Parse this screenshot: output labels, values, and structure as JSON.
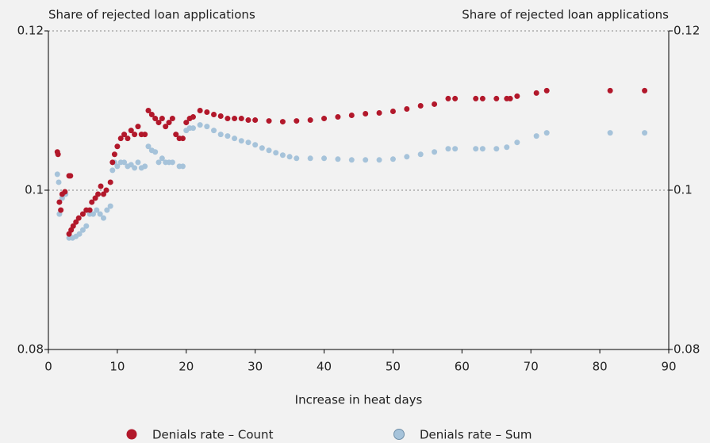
{
  "chart_data": {
    "type": "scatter",
    "y_label": "Share of rejected loan applications",
    "y2_label": "Share of rejected loan applications",
    "x_label": "Increase in heat days",
    "xlim": [
      0,
      90
    ],
    "xticks": [
      0,
      10,
      20,
      30,
      40,
      50,
      60,
      70,
      80,
      90
    ],
    "ylim": [
      0.08,
      0.12
    ],
    "yticks": [
      0.08,
      0.1,
      0.12
    ],
    "y2lim": [
      0.08,
      0.12
    ],
    "y2ticks": [
      0.08,
      0.1,
      0.12
    ],
    "grid": true,
    "series": [
      {
        "name": "Denials rate – Count",
        "color": "#b2182b",
        "x": [
          1.3,
          1.4,
          1.6,
          1.8,
          2.0,
          2.4,
          3.0,
          3.2,
          3.0,
          3.3,
          3.6,
          4.0,
          4.4,
          5.0,
          5.5,
          6.0,
          6.3,
          6.8,
          7.2,
          7.6,
          8.0,
          8.4,
          9.0,
          9.3,
          9.6,
          10.0,
          10.5,
          11.0,
          11.5,
          12,
          12.5,
          13,
          13.5,
          14,
          14.5,
          15,
          15.5,
          16,
          16.5,
          17,
          17.5,
          18,
          18.5,
          19,
          19.5,
          20,
          20.5,
          21,
          22,
          23,
          24,
          25,
          26,
          27,
          28,
          29,
          30,
          32,
          34,
          36,
          38,
          40,
          42,
          44,
          46,
          48,
          50,
          52,
          54,
          56,
          58,
          59,
          62,
          63,
          65,
          66.5,
          67,
          68,
          70.8,
          72.3,
          81.5,
          86.5
        ],
        "values": [
          0.1048,
          0.1045,
          0.0985,
          0.0975,
          0.0995,
          0.0998,
          0.1018,
          0.1018,
          0.0945,
          0.095,
          0.0955,
          0.096,
          0.0965,
          0.097,
          0.0975,
          0.0975,
          0.0985,
          0.099,
          0.0995,
          0.1005,
          0.0995,
          0.1,
          0.101,
          0.1035,
          0.1045,
          0.1055,
          0.1065,
          0.107,
          0.1065,
          0.1075,
          0.107,
          0.108,
          0.107,
          0.107,
          0.11,
          0.1095,
          0.109,
          0.1085,
          0.109,
          0.108,
          0.1085,
          0.109,
          0.107,
          0.1065,
          0.1065,
          0.1085,
          0.109,
          0.1092,
          0.11,
          0.1098,
          0.1095,
          0.1093,
          0.109,
          0.109,
          0.109,
          0.1088,
          0.1088,
          0.1087,
          0.1086,
          0.1087,
          0.1088,
          0.109,
          0.1092,
          0.1094,
          0.1096,
          0.1097,
          0.1099,
          0.1102,
          0.1106,
          0.1108,
          0.1115,
          0.1115,
          0.1115,
          0.1115,
          0.1115,
          0.1115,
          0.1115,
          0.1118,
          0.1122,
          0.1125,
          0.1125,
          0.1125
        ]
      },
      {
        "name": "Denials rate – Sum",
        "color": "#a6c3da",
        "x": [
          1.3,
          1.5,
          1.6,
          2.0,
          2.5,
          3.0,
          3.5,
          4.0,
          4.5,
          5.0,
          5.5,
          6.0,
          6.5,
          7.0,
          7.5,
          8.0,
          8.5,
          9.0,
          9.3,
          9.6,
          10,
          10.5,
          11,
          11.5,
          12,
          12.5,
          13,
          13.5,
          14,
          14.5,
          15,
          15.5,
          16,
          16.5,
          17,
          17.5,
          18,
          19,
          19.5,
          20,
          20.5,
          21,
          22,
          23,
          24,
          25,
          26,
          27,
          28,
          29,
          30,
          31,
          32,
          33,
          34,
          35,
          36,
          38,
          40,
          42,
          44,
          46,
          48,
          50,
          52,
          54,
          56,
          58,
          59,
          62,
          63,
          65,
          66.5,
          68,
          70.8,
          72.3,
          81.5,
          86.5
        ],
        "values": [
          0.102,
          0.101,
          0.097,
          0.099,
          0.0995,
          0.094,
          0.094,
          0.0942,
          0.0945,
          0.095,
          0.0955,
          0.097,
          0.097,
          0.0975,
          0.097,
          0.0965,
          0.0975,
          0.098,
          0.1025,
          0.1035,
          0.103,
          0.1035,
          0.1035,
          0.103,
          0.1032,
          0.1028,
          0.1035,
          0.1028,
          0.103,
          0.1055,
          0.105,
          0.1048,
          0.1035,
          0.104,
          0.1035,
          0.1035,
          0.1035,
          0.103,
          0.103,
          0.1075,
          0.1078,
          0.1078,
          0.1082,
          0.108,
          0.1075,
          0.107,
          0.1068,
          0.1065,
          0.1062,
          0.106,
          0.1057,
          0.1053,
          0.105,
          0.1047,
          0.1044,
          0.1042,
          0.104,
          0.104,
          0.104,
          0.1039,
          0.1038,
          0.1038,
          0.1038,
          0.1039,
          0.1042,
          0.1045,
          0.1048,
          0.1052,
          0.1052,
          0.1052,
          0.1052,
          0.1052,
          0.1054,
          0.106,
          0.1068,
          0.1072,
          0.1072,
          0.1072
        ]
      }
    ]
  }
}
